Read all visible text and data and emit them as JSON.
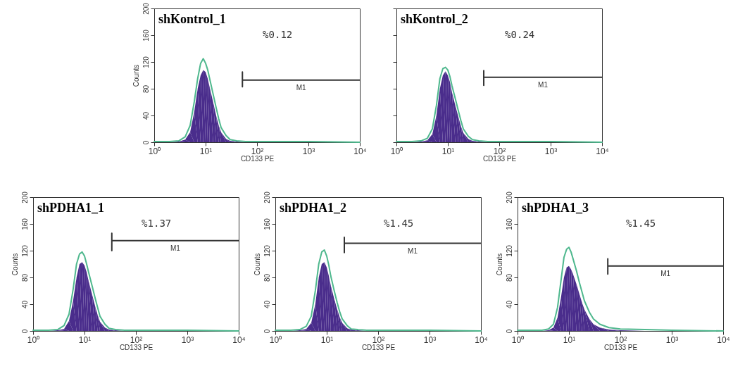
{
  "chart_data": [
    {
      "type": "area",
      "title": "shKontrol_1",
      "xlabel": "CD133 PE",
      "ylabel": "Counts",
      "log": "x",
      "xlim": [
        1,
        10000
      ],
      "xticks": [
        {
          "value": 1,
          "label": "10⁰"
        },
        {
          "value": 10,
          "label": "10¹"
        },
        {
          "value": 100,
          "label": "10²"
        },
        {
          "value": 1000,
          "label": "10³"
        },
        {
          "value": 10000,
          "label": "10⁴"
        }
      ],
      "ylim": [
        0,
        200
      ],
      "yticks": [
        0,
        40,
        80,
        120,
        160,
        200
      ],
      "x": [
        1,
        2,
        3,
        4,
        5,
        6,
        7,
        8,
        9,
        10,
        11,
        12,
        14,
        16,
        18,
        20,
        25,
        30,
        40,
        60,
        100,
        300,
        1000,
        10000
      ],
      "series": [
        {
          "type": "area",
          "color": "#4a2d8c",
          "values": [
            0,
            0,
            1,
            4,
            15,
            45,
            80,
            100,
            108,
            105,
            95,
            82,
            60,
            40,
            25,
            15,
            5,
            2,
            1,
            0,
            0,
            0,
            0,
            0
          ]
        },
        {
          "type": "line",
          "color": "#4fb88e",
          "values": [
            1,
            1,
            2,
            8,
            25,
            60,
            95,
            118,
            125,
            118,
            108,
            95,
            72,
            52,
            35,
            22,
            10,
            4,
            2,
            1,
            1,
            1,
            1,
            0
          ]
        },
        {
          "type": "line",
          "name": "M1",
          "color": "#333333",
          "x": [
            52,
            52,
            52,
            10000
          ],
          "values": [
            105,
            83,
            93,
            93
          ]
        }
      ],
      "annotations": [
        "%0.12"
      ]
    },
    {
      "type": "area",
      "title": "shKontrol_2",
      "xlabel": "CD133 PE",
      "log": "x",
      "tick_labels": "x",
      "xlim": [
        1,
        10000
      ],
      "xticks": [
        {
          "value": 1,
          "label": "10⁰"
        },
        {
          "value": 10,
          "label": "10¹"
        },
        {
          "value": 100,
          "label": "10²"
        },
        {
          "value": 1000,
          "label": "10³"
        },
        {
          "value": 10000,
          "label": "10⁴"
        }
      ],
      "ylim": [
        0,
        200
      ],
      "yticks": [
        0,
        40,
        80,
        120,
        160,
        200
      ],
      "x": [
        1,
        2,
        3,
        4,
        5,
        6,
        7,
        8,
        9,
        10,
        11,
        12,
        14,
        16,
        18,
        20,
        25,
        30,
        40,
        60,
        100,
        300,
        1000,
        10000
      ],
      "series": [
        {
          "type": "area",
          "color": "#4a2d8c",
          "values": [
            0,
            0,
            1,
            3,
            12,
            40,
            80,
            100,
            106,
            100,
            90,
            75,
            55,
            38,
            24,
            14,
            5,
            2,
            1,
            0,
            0,
            0,
            0,
            0
          ]
        },
        {
          "type": "line",
          "color": "#4fb88e",
          "values": [
            1,
            1,
            2,
            6,
            20,
            55,
            95,
            110,
            112,
            108,
            98,
            85,
            65,
            47,
            32,
            20,
            9,
            4,
            2,
            1,
            1,
            1,
            1,
            0
          ]
        },
        {
          "type": "line",
          "name": "M1",
          "color": "#333333",
          "x": [
            50,
            50,
            50,
            10000
          ],
          "values": [
            107,
            85,
            97,
            97
          ]
        }
      ],
      "annotations": [
        "%0.24"
      ]
    },
    {
      "type": "area",
      "title": "shPDHA1_1",
      "xlabel": "CD133 PE",
      "ylabel": "Counts",
      "log": "x",
      "xlim": [
        1,
        10000
      ],
      "xticks": [
        {
          "value": 1,
          "label": "10⁰"
        },
        {
          "value": 10,
          "label": "10¹"
        },
        {
          "value": 100,
          "label": "10²"
        },
        {
          "value": 1000,
          "label": "10³"
        },
        {
          "value": 10000,
          "label": "10⁴"
        }
      ],
      "ylim": [
        0,
        200
      ],
      "yticks": [
        0,
        40,
        80,
        120,
        160,
        200
      ],
      "x": [
        1,
        2,
        3,
        4,
        5,
        6,
        7,
        8,
        9,
        10,
        11,
        12,
        14,
        16,
        18,
        20,
        25,
        30,
        40,
        60,
        100,
        300,
        1000,
        10000
      ],
      "series": [
        {
          "type": "area",
          "color": "#4a2d8c",
          "values": [
            0,
            0,
            1,
            3,
            15,
            45,
            80,
            100,
            103,
            98,
            88,
            75,
            55,
            38,
            24,
            14,
            5,
            2,
            1,
            0,
            0,
            0,
            0,
            0
          ]
        },
        {
          "type": "line",
          "color": "#4fb88e",
          "values": [
            1,
            1,
            2,
            8,
            25,
            62,
            100,
            115,
            118,
            112,
            100,
            88,
            68,
            50,
            35,
            22,
            10,
            4,
            2,
            1,
            1,
            1,
            1,
            0
          ]
        },
        {
          "type": "line",
          "name": "M1",
          "color": "#333333",
          "x": [
            34,
            34,
            34,
            10000
          ],
          "values": [
            146,
            120,
            135,
            135
          ]
        }
      ],
      "annotations": [
        "%1.37"
      ]
    },
    {
      "type": "area",
      "title": "shPDHA1_2",
      "xlabel": "CD133 PE",
      "ylabel": "Counts",
      "log": "x",
      "xlim": [
        1,
        10000
      ],
      "xticks": [
        {
          "value": 1,
          "label": "10⁰"
        },
        {
          "value": 10,
          "label": "10¹"
        },
        {
          "value": 100,
          "label": "10²"
        },
        {
          "value": 1000,
          "label": "10³"
        },
        {
          "value": 10000,
          "label": "10⁴"
        }
      ],
      "ylim": [
        0,
        200
      ],
      "yticks": [
        0,
        40,
        80,
        120,
        160,
        200
      ],
      "x": [
        1,
        2,
        3,
        4,
        5,
        6,
        7,
        8,
        9,
        10,
        11,
        12,
        14,
        16,
        18,
        20,
        25,
        30,
        40,
        60,
        100,
        300,
        1000,
        10000
      ],
      "series": [
        {
          "type": "area",
          "color": "#4a2d8c",
          "values": [
            0,
            0,
            1,
            3,
            12,
            40,
            80,
            100,
            103,
            95,
            82,
            68,
            48,
            32,
            20,
            12,
            4,
            2,
            1,
            0,
            0,
            0,
            0,
            0
          ]
        },
        {
          "type": "line",
          "color": "#4fb88e",
          "values": [
            1,
            1,
            2,
            7,
            22,
            60,
            100,
            118,
            121,
            112,
            98,
            82,
            60,
            42,
            28,
            18,
            8,
            3,
            2,
            1,
            1,
            1,
            1,
            0
          ]
        },
        {
          "type": "line",
          "name": "M1",
          "color": "#333333",
          "x": [
            22,
            22,
            22,
            10000
          ],
          "values": [
            140,
            117,
            131,
            131
          ]
        }
      ],
      "annotations": [
        "%1.45"
      ]
    },
    {
      "type": "area",
      "title": "shPDHA1_3",
      "xlabel": "CD133 PE",
      "ylabel": "Counts",
      "log": "x",
      "xlim": [
        1,
        10000
      ],
      "xticks": [
        {
          "value": 1,
          "label": "10⁰"
        },
        {
          "value": 10,
          "label": "10¹"
        },
        {
          "value": 100,
          "label": "10²"
        },
        {
          "value": 1000,
          "label": "10³"
        },
        {
          "value": 10000,
          "label": "10⁴"
        }
      ],
      "ylim": [
        0,
        200
      ],
      "yticks": [
        0,
        40,
        80,
        120,
        160,
        200
      ],
      "x": [
        1,
        2,
        3,
        4,
        5,
        6,
        7,
        8,
        9,
        10,
        11,
        12,
        14,
        16,
        18,
        20,
        25,
        30,
        40,
        60,
        100,
        300,
        1000,
        10000
      ],
      "series": [
        {
          "type": "area",
          "color": "#4a2d8c",
          "values": [
            0,
            0,
            0,
            1,
            5,
            20,
            50,
            80,
            95,
            97,
            92,
            85,
            70,
            55,
            42,
            32,
            18,
            10,
            5,
            2,
            1,
            0,
            0,
            0
          ]
        },
        {
          "type": "line",
          "color": "#4fb88e",
          "values": [
            1,
            1,
            1,
            3,
            10,
            35,
            75,
            110,
            122,
            125,
            118,
            108,
            90,
            72,
            58,
            45,
            28,
            18,
            10,
            5,
            3,
            2,
            1,
            0
          ]
        },
        {
          "type": "line",
          "name": "M1",
          "color": "#333333",
          "x": [
            57,
            57,
            57,
            10000
          ],
          "values": [
            108,
            85,
            97,
            97
          ]
        }
      ],
      "annotations": [
        "%1.45"
      ]
    }
  ]
}
